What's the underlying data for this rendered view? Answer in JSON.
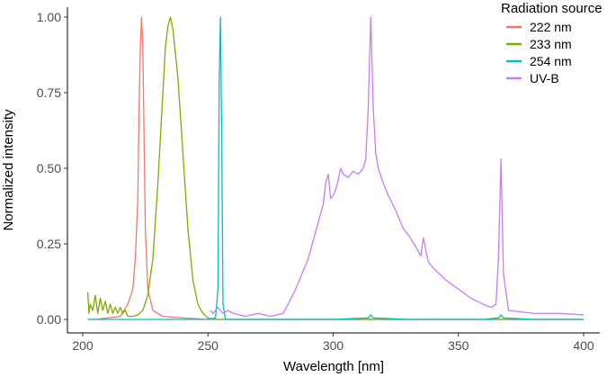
{
  "chart_data": {
    "type": "line",
    "title": "",
    "xlabel": "Wavelength [nm]",
    "ylabel": "Normalized intensity",
    "xlim": [
      200,
      400
    ],
    "ylim": [
      0,
      1
    ],
    "xticks": [
      "200",
      "250",
      "300",
      "350",
      "400"
    ],
    "yticks": [
      "0.00",
      "0.25",
      "0.50",
      "0.75",
      "1.00"
    ],
    "grid": false,
    "legend": {
      "title": "Radiation source",
      "placement": "top-right"
    },
    "series": [
      {
        "name": "222 nm",
        "color": "#F8766D",
        "x": [
          202,
          205,
          210,
          215,
          218,
          220,
          221,
          222,
          222.5,
          223,
          223.5,
          224,
          224.5,
          225,
          226,
          228,
          232,
          240,
          250,
          260,
          280,
          300,
          320,
          340,
          360,
          380,
          400
        ],
        "y": [
          0.0,
          0.0,
          0.005,
          0.01,
          0.05,
          0.1,
          0.2,
          0.4,
          0.7,
          0.9,
          1.0,
          0.9,
          0.6,
          0.3,
          0.1,
          0.03,
          0.01,
          0.005,
          0.0,
          0.0,
          0.0,
          0.0,
          0.0,
          0.0,
          0.0,
          0.0,
          0.0
        ]
      },
      {
        "name": "233 nm",
        "color": "#7CAE00",
        "x": [
          202,
          202.5,
          203,
          204,
          205,
          206,
          207,
          208,
          209,
          210,
          211,
          212,
          213,
          214,
          215,
          216,
          217,
          218,
          220,
          222,
          224,
          226,
          228,
          230,
          232,
          233,
          234,
          235,
          236,
          238,
          240,
          242,
          244,
          246,
          248,
          250,
          252,
          255,
          260,
          280,
          300,
          320,
          340,
          360,
          380,
          400
        ],
        "y": [
          0.09,
          0.02,
          0.05,
          0.03,
          0.08,
          0.02,
          0.07,
          0.03,
          0.06,
          0.02,
          0.05,
          0.02,
          0.04,
          0.02,
          0.04,
          0.02,
          0.03,
          0.01,
          0.01,
          0.015,
          0.03,
          0.08,
          0.2,
          0.45,
          0.75,
          0.9,
          0.97,
          1.0,
          0.96,
          0.8,
          0.55,
          0.3,
          0.13,
          0.05,
          0.02,
          0.005,
          0.0,
          0.0,
          0.0,
          0.0,
          0.0,
          0.0,
          0.0,
          0.0,
          0.0,
          0.0
        ]
      },
      {
        "name": "254 nm",
        "color": "#00BFC4",
        "x": [
          202,
          220,
          240,
          250,
          253,
          254,
          254.5,
          255,
          255.5,
          256,
          257,
          260,
          280,
          300,
          314,
          315,
          316,
          330,
          360,
          366,
          367,
          368,
          380,
          400
        ],
        "y": [
          0.0,
          0.0,
          0.0,
          0.0,
          0.005,
          0.1,
          0.8,
          1.0,
          0.6,
          0.05,
          0.0,
          0.0,
          0.0,
          0.0,
          0.005,
          0.015,
          0.005,
          0.0,
          0.0,
          0.005,
          0.015,
          0.005,
          0.0,
          0.0
        ]
      },
      {
        "name": "UV-B",
        "color": "#C77CFF",
        "x": [
          251,
          252,
          254,
          256,
          258,
          260,
          265,
          270,
          275,
          280,
          282,
          285,
          288,
          290,
          292,
          294,
          296,
          297,
          298,
          299,
          300,
          301,
          302,
          303,
          304,
          306,
          308,
          310,
          312,
          313,
          314,
          315,
          316,
          317,
          318,
          320,
          322,
          325,
          328,
          330,
          333,
          335,
          336,
          338,
          340,
          345,
          350,
          355,
          360,
          363,
          365,
          366,
          367,
          368,
          370,
          375,
          380,
          390,
          400
        ],
        "y": [
          0.03,
          0.02,
          0.04,
          0.02,
          0.03,
          0.02,
          0.01,
          0.02,
          0.01,
          0.02,
          0.05,
          0.1,
          0.16,
          0.2,
          0.26,
          0.32,
          0.38,
          0.45,
          0.48,
          0.4,
          0.41,
          0.43,
          0.46,
          0.5,
          0.48,
          0.47,
          0.49,
          0.48,
          0.5,
          0.53,
          0.7,
          1.0,
          0.7,
          0.55,
          0.5,
          0.45,
          0.41,
          0.36,
          0.3,
          0.28,
          0.24,
          0.21,
          0.27,
          0.19,
          0.17,
          0.13,
          0.1,
          0.07,
          0.05,
          0.04,
          0.05,
          0.2,
          0.53,
          0.15,
          0.03,
          0.025,
          0.02,
          0.02,
          0.015
        ]
      }
    ]
  }
}
